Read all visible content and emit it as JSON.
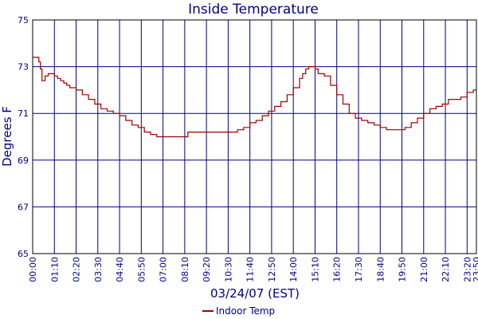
{
  "chart_data": {
    "type": "line",
    "title": "Inside Temperature",
    "xlabel": "03/24/07 (EST)",
    "ylabel": "Degrees F",
    "ylim": [
      65,
      75
    ],
    "y_ticks": [
      "65",
      "67",
      "69",
      "71",
      "73",
      "75"
    ],
    "x_range_minutes": [
      0,
      1430
    ],
    "x_ticks": [
      "00:00",
      "01:10",
      "02:20",
      "03:30",
      "04:40",
      "05:50",
      "07:00",
      "08:10",
      "09:20",
      "10:30",
      "11:40",
      "12:50",
      "14:00",
      "15:10",
      "16:20",
      "17:30",
      "18:40",
      "19:50",
      "21:00",
      "22:10",
      "23:20",
      "23:50"
    ],
    "grid": true,
    "legend": "bottom-center",
    "colors": {
      "series": "#a00000",
      "grid": "#00007f",
      "text": "#00007f"
    },
    "series": [
      {
        "name": "Indoor Temp",
        "x": [
          0,
          10,
          20,
          25,
          30,
          40,
          50,
          60,
          70,
          80,
          90,
          100,
          110,
          120,
          140,
          160,
          180,
          200,
          220,
          240,
          260,
          280,
          300,
          320,
          340,
          360,
          380,
          400,
          420,
          440,
          460,
          480,
          500,
          520,
          540,
          560,
          580,
          600,
          620,
          640,
          660,
          680,
          700,
          720,
          740,
          760,
          780,
          800,
          820,
          840,
          860,
          870,
          880,
          890,
          900,
          910,
          920,
          930,
          940,
          960,
          980,
          1000,
          1020,
          1040,
          1060,
          1080,
          1100,
          1120,
          1140,
          1160,
          1180,
          1200,
          1220,
          1240,
          1260,
          1280,
          1300,
          1320,
          1340,
          1360,
          1380,
          1400,
          1420,
          1430
        ],
        "values": [
          73.4,
          73.4,
          73.2,
          72.9,
          72.4,
          72.6,
          72.7,
          72.7,
          72.6,
          72.5,
          72.4,
          72.3,
          72.2,
          72.1,
          72.0,
          71.8,
          71.6,
          71.4,
          71.2,
          71.1,
          71.0,
          70.9,
          70.7,
          70.5,
          70.4,
          70.2,
          70.1,
          70.0,
          70.0,
          70.0,
          70.0,
          70.0,
          70.2,
          70.2,
          70.2,
          70.2,
          70.2,
          70.2,
          70.2,
          70.2,
          70.3,
          70.4,
          70.6,
          70.7,
          70.9,
          71.1,
          71.3,
          71.5,
          71.8,
          72.1,
          72.5,
          72.7,
          72.9,
          73.0,
          73.0,
          72.9,
          72.7,
          72.7,
          72.6,
          72.2,
          71.8,
          71.4,
          71.0,
          70.8,
          70.7,
          70.6,
          70.5,
          70.4,
          70.3,
          70.3,
          70.3,
          70.4,
          70.6,
          70.8,
          71.0,
          71.2,
          71.3,
          71.4,
          71.6,
          71.6,
          71.7,
          71.9,
          72.0,
          72.0
        ]
      }
    ]
  }
}
